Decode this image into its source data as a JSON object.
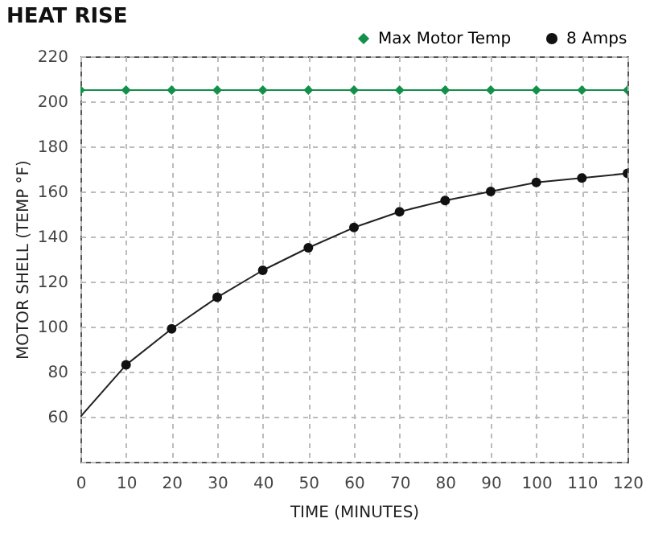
{
  "chart_data": {
    "type": "line",
    "title": "HEAT RISE",
    "xlabel": "TIME (MINUTES)",
    "ylabel": "MOTOR SHELL (TEMP °F)",
    "xlim": [
      0,
      120
    ],
    "xticks": [
      0,
      10,
      20,
      30,
      40,
      50,
      60,
      70,
      80,
      90,
      100,
      110,
      120
    ],
    "ylim": [
      40,
      220
    ],
    "yticks": [
      {
        "value": 40,
        "label": null
      },
      60,
      80,
      100,
      120,
      140,
      160,
      180,
      200,
      220
    ],
    "grid": true,
    "legend": "top right",
    "series": [
      {
        "name": "Max Motor Temp",
        "type": "line",
        "marker": "diamond",
        "color": "#13904a",
        "x": [
          0,
          10,
          20,
          30,
          40,
          50,
          60,
          70,
          80,
          90,
          100,
          110,
          120
        ],
        "values": [
          205,
          205,
          205,
          205,
          205,
          205,
          205,
          205,
          205,
          205,
          205,
          205,
          205
        ]
      },
      {
        "type": "line",
        "marker": "none",
        "color": "#222222",
        "x": [
          0,
          10,
          20,
          30,
          40,
          50,
          60,
          70,
          80,
          90,
          100,
          110,
          120
        ],
        "values": [
          60,
          83,
          99,
          113,
          125,
          135,
          144,
          151,
          156,
          160,
          164,
          166,
          168
        ]
      },
      {
        "name": "8 Amps",
        "type": "scatter",
        "marker": "circle",
        "color": "#111111",
        "x": [
          10,
          20,
          30,
          40,
          50,
          60,
          70,
          80,
          90,
          100,
          110,
          120
        ],
        "values": [
          83,
          99,
          113,
          125,
          135,
          144,
          151,
          156,
          160,
          164,
          166,
          168
        ]
      }
    ]
  }
}
